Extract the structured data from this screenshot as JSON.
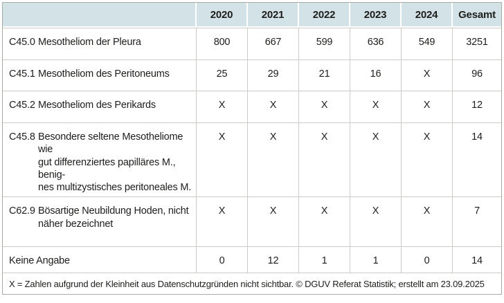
{
  "table": {
    "header": {
      "columns": [
        "2020",
        "2021",
        "2022",
        "2023",
        "2024",
        "Gesamt"
      ]
    },
    "rows": [
      {
        "code": "C45.0",
        "label_lines": [
          "Mesotheliom der Pleura"
        ],
        "values": [
          "800",
          "667",
          "599",
          "636",
          "549",
          "3251"
        ]
      },
      {
        "code": "C45.1",
        "label_lines": [
          "Mesotheliom des Peritoneums"
        ],
        "values": [
          "25",
          "29",
          "21",
          "16",
          "X",
          "96"
        ]
      },
      {
        "code": "C45.2",
        "label_lines": [
          "Mesotheliom des Perikards"
        ],
        "values": [
          "X",
          "X",
          "X",
          "X",
          "X",
          "12"
        ]
      },
      {
        "code": "C45.8",
        "label_lines": [
          "Besondere seltene Mesotheliome wie",
          "gut differenziertes papilläres M., benig-",
          "nes multizystisches peritoneales M."
        ],
        "values": [
          "X",
          "X",
          "X",
          "X",
          "X",
          "14"
        ]
      },
      {
        "code": "C62.9",
        "label_lines": [
          "Bösartige Neubildung Hoden, nicht",
          "näher bezeichnet"
        ],
        "values": [
          "X",
          "X",
          "X",
          "X",
          "X",
          "7"
        ]
      },
      {
        "code": "",
        "label_lines": [
          "Keine Angabe"
        ],
        "values": [
          "0",
          "12",
          "1",
          "1",
          "0",
          "14"
        ]
      }
    ],
    "footnote": "X = Zahlen aufgrund der Kleinheit aus Datenschutzgründen nicht sichtbar. © DGUV Referat Statistik; erstellt am 23.09.2025"
  },
  "chart_data": {
    "type": "table",
    "columns": [
      "",
      "2020",
      "2021",
      "2022",
      "2023",
      "2024",
      "Gesamt"
    ],
    "rows": [
      [
        "C45.0 Mesotheliom der Pleura",
        800,
        667,
        599,
        636,
        549,
        3251
      ],
      [
        "C45.1 Mesotheliom des Peritoneums",
        25,
        29,
        21,
        16,
        "X",
        96
      ],
      [
        "C45.2 Mesotheliom des Perikards",
        "X",
        "X",
        "X",
        "X",
        "X",
        12
      ],
      [
        "C45.8 Besondere seltene Mesotheliome wie gut differenziertes papilläres M., benignes multizystisches peritoneales M.",
        "X",
        "X",
        "X",
        "X",
        "X",
        14
      ],
      [
        "C62.9 Bösartige Neubildung Hoden, nicht näher bezeichnet",
        "X",
        "X",
        "X",
        "X",
        "X",
        7
      ],
      [
        "Keine Angabe",
        0,
        12,
        1,
        1,
        0,
        14
      ]
    ],
    "footnote": "X = Zahlen aufgrund der Kleinheit aus Datenschutzgründen nicht sichtbar. © DGUV Referat Statistik; erstellt am 23.09.2025"
  },
  "colors": {
    "header_bg": "#d3e2e6",
    "border": "#cbcbc5",
    "outer_border": "#a9a9a4",
    "text": "#1d1d1b"
  }
}
